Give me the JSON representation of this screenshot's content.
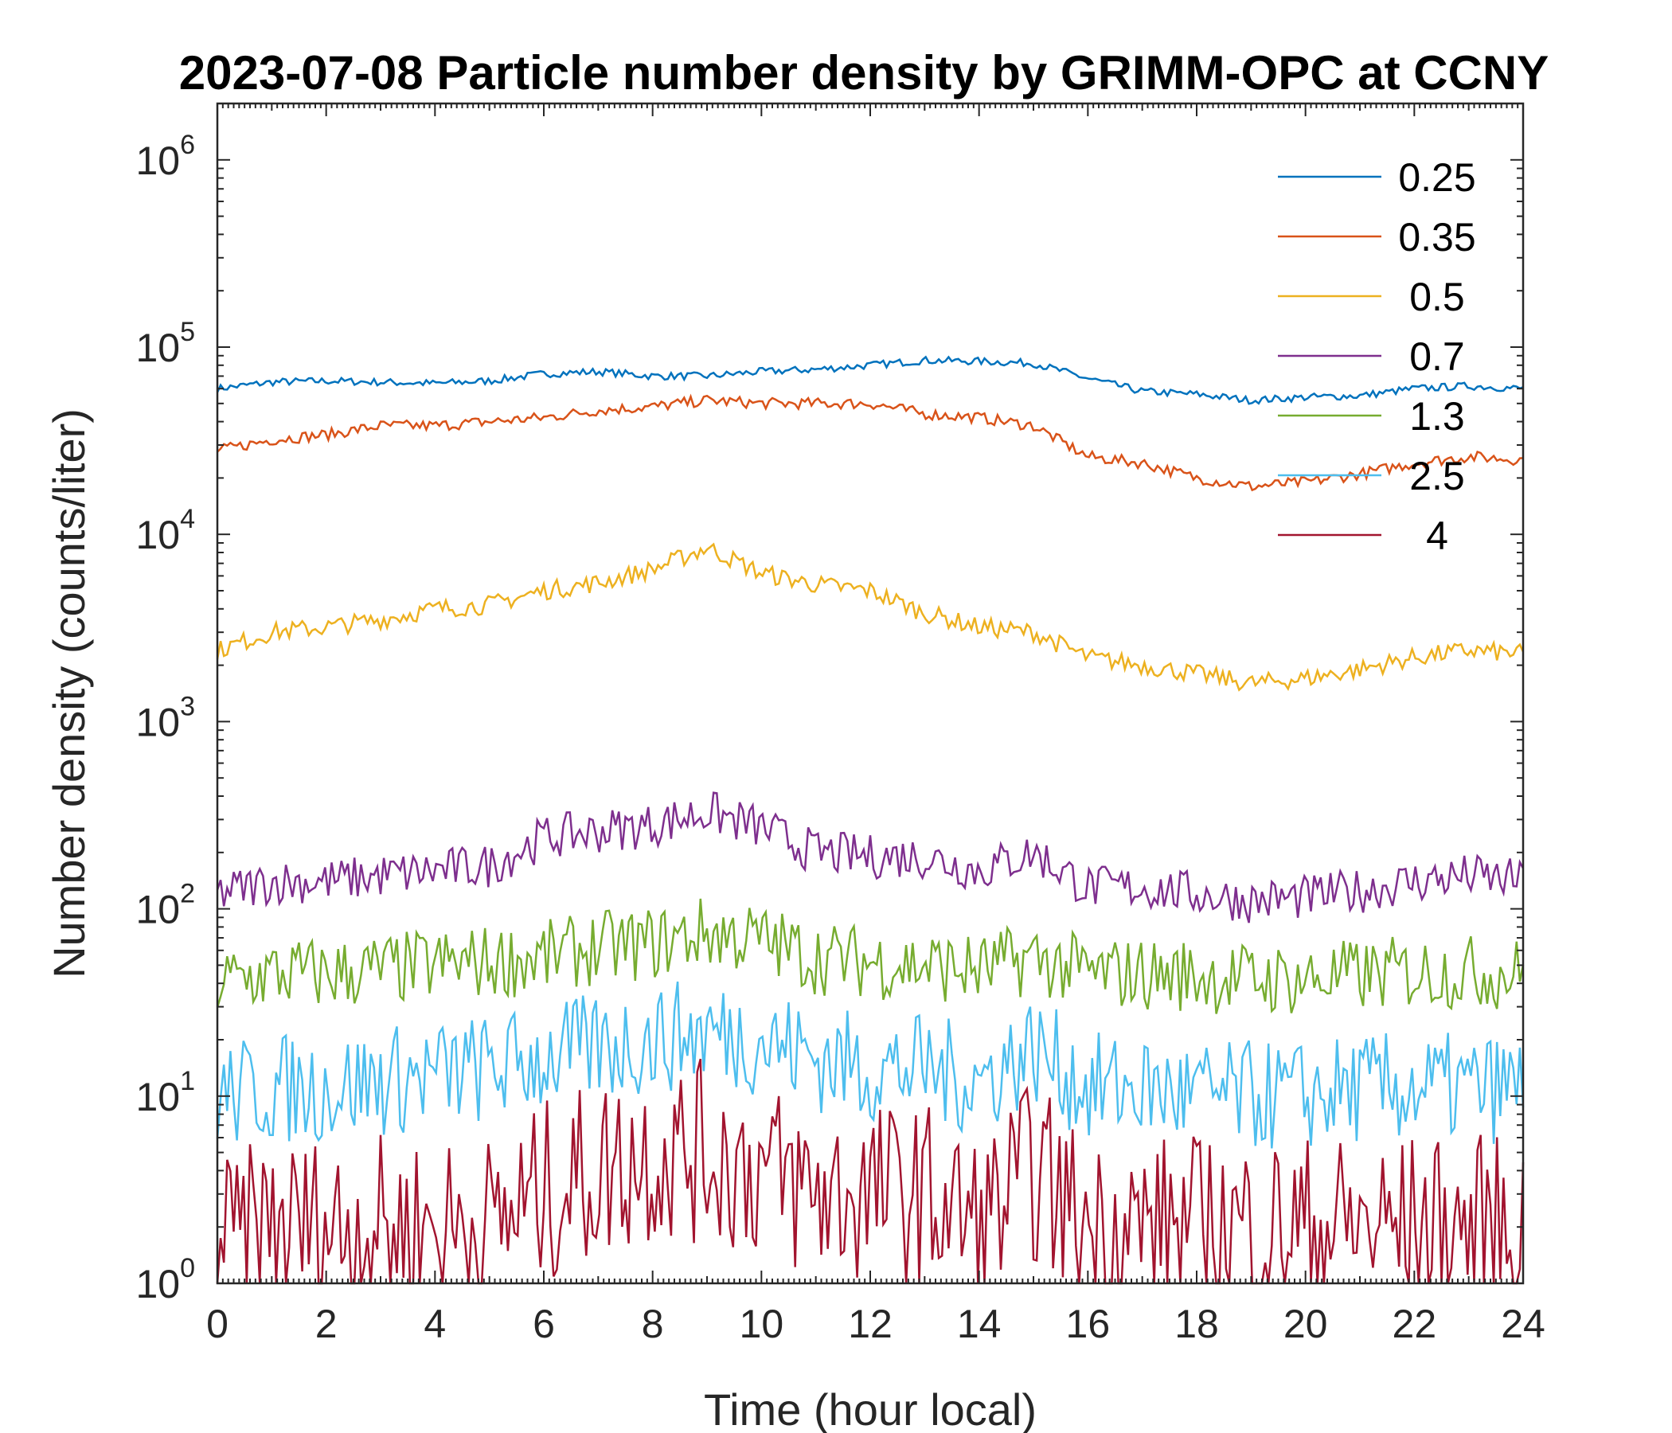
{
  "chart_data": {
    "type": "line",
    "title": "2023-07-08 Particle number density by GRIMM-OPC at CCNY",
    "xlabel": "Time (hour local)",
    "ylabel": "Number density (counts/liter)",
    "xlim": [
      0,
      24
    ],
    "ylim": [
      1,
      2000000
    ],
    "yscale": "log",
    "x_ticks": [
      "0",
      "2",
      "4",
      "6",
      "8",
      "10",
      "12",
      "14",
      "16",
      "18",
      "20",
      "22",
      "24"
    ],
    "y_ticks": [
      {
        "base": "10",
        "exp": "0"
      },
      {
        "base": "10",
        "exp": "1"
      },
      {
        "base": "10",
        "exp": "2"
      },
      {
        "base": "10",
        "exp": "3"
      },
      {
        "base": "10",
        "exp": "4"
      },
      {
        "base": "10",
        "exp": "5"
      },
      {
        "base": "10",
        "exp": "6"
      }
    ],
    "grid": false,
    "legend_position": "top-right",
    "x": [
      0,
      1,
      2,
      3,
      4,
      5,
      6,
      7,
      8,
      9,
      10,
      11,
      12,
      13,
      14,
      15,
      16,
      17,
      18,
      19,
      20,
      21,
      22,
      23,
      24
    ],
    "series": [
      {
        "name": "0.25",
        "color": "#0072BD",
        "values": [
          60000,
          65000,
          66000,
          65000,
          64000,
          66000,
          72000,
          74000,
          70000,
          70000,
          74000,
          76000,
          80000,
          85000,
          84000,
          82000,
          68000,
          58000,
          56000,
          52000,
          54000,
          55000,
          60000,
          62000,
          60000
        ]
      },
      {
        "name": "0.35",
        "color": "#D95319",
        "values": [
          28000,
          32000,
          34000,
          38000,
          38000,
          40000,
          42000,
          46000,
          48000,
          52000,
          50000,
          50000,
          50000,
          44000,
          42000,
          38000,
          26000,
          24000,
          20000,
          18000,
          19000,
          21000,
          24000,
          26000,
          25000
        ]
      },
      {
        "name": "0.5",
        "color": "#EDB120",
        "values": [
          2400,
          3000,
          3200,
          3500,
          4000,
          4200,
          5000,
          5500,
          6500,
          8500,
          6200,
          5400,
          5000,
          3800,
          3200,
          3000,
          2200,
          2000,
          1800,
          1600,
          1700,
          1900,
          2200,
          2400,
          2300
        ]
      },
      {
        "name": "0.7",
        "color": "#7E2F8E",
        "values": [
          120,
          140,
          140,
          150,
          160,
          170,
          240,
          260,
          280,
          330,
          270,
          200,
          190,
          190,
          160,
          200,
          130,
          130,
          120,
          110,
          115,
          125,
          140,
          150,
          140
        ]
      },
      {
        "name": "1.3",
        "color": "#77AC30",
        "values": [
          40,
          45,
          45,
          47,
          50,
          52,
          55,
          62,
          65,
          75,
          68,
          55,
          52,
          50,
          47,
          55,
          45,
          45,
          44,
          42,
          42,
          44,
          46,
          46,
          45
        ]
      },
      {
        "name": "2.5",
        "color": "#4DBEEE",
        "values": [
          10,
          11,
          11,
          12,
          13,
          14,
          16,
          18,
          20,
          22,
          20,
          16,
          14,
          14,
          12,
          18,
          11,
          11,
          10,
          10,
          10,
          11,
          11,
          11,
          11
        ]
      },
      {
        "name": "4",
        "color": "#A2142F",
        "values": [
          1.5,
          2,
          2,
          2,
          2,
          2,
          3,
          4,
          5,
          5,
          4,
          3,
          3,
          3,
          2,
          4,
          2,
          2,
          2,
          2,
          2,
          2,
          2,
          2,
          2
        ]
      }
    ]
  }
}
